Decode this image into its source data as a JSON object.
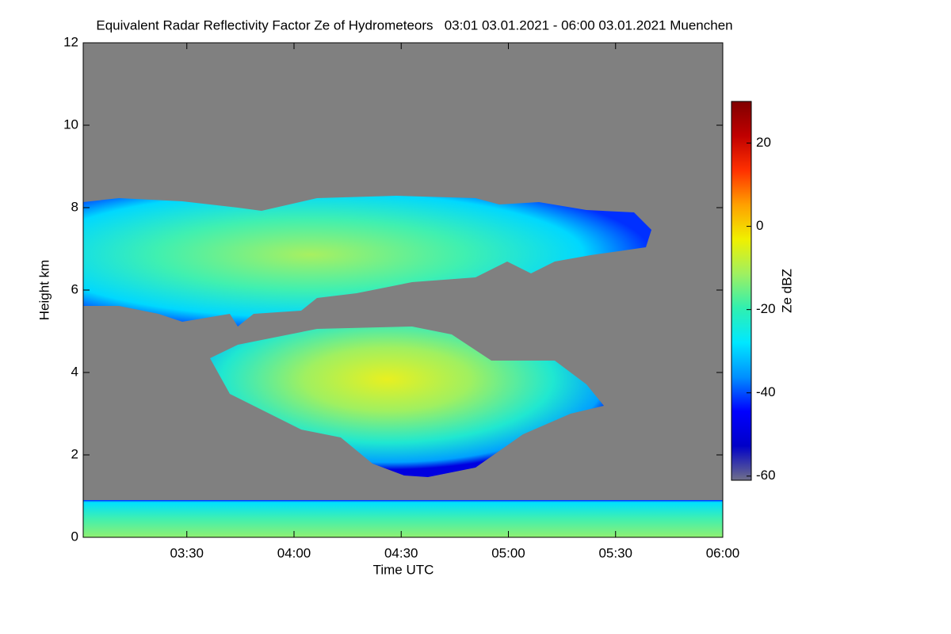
{
  "chart_data": {
    "type": "heatmap",
    "title": "Equivalent Radar Reflectivity Factor Ze of Hydrometeors   03:01 03.01.2021 - 06:00 03.01.2021 Muenchen",
    "xlabel": "Time UTC",
    "ylabel": "Height km",
    "xlim": [
      181,
      360
    ],
    "xticks": [
      {
        "value": 210,
        "label": "03:30"
      },
      {
        "value": 240,
        "label": "04:00"
      },
      {
        "value": 270,
        "label": "04:30"
      },
      {
        "value": 300,
        "label": "05:00"
      },
      {
        "value": 330,
        "label": "05:30"
      },
      {
        "value": 360,
        "label": "06:00"
      }
    ],
    "ylim": [
      0,
      12
    ],
    "yticks": [
      0,
      2,
      4,
      6,
      8,
      10,
      12
    ],
    "background": "#808080",
    "colorbar": {
      "label": "Ze dBZ",
      "lim": [
        -61,
        30
      ],
      "ticks": [
        -60,
        -40,
        -20,
        0,
        20
      ],
      "colors": [
        "#70708a",
        "#0000c8",
        "#0000ff",
        "#0090ff",
        "#00e8ff",
        "#30f0b0",
        "#a0f060",
        "#f0f000",
        "#ffa000",
        "#ff3000",
        "#c00000",
        "#800000"
      ]
    }
  }
}
